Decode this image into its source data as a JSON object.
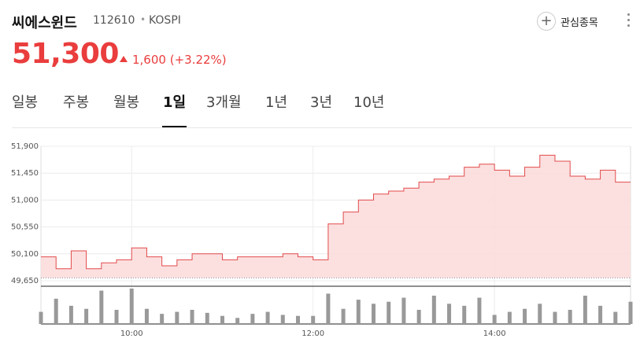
{
  "stock": {
    "name": "씨에스윈드",
    "code": "112610",
    "separator": "•",
    "market": "KOSPI",
    "price": "51,300",
    "change": "1,600",
    "change_pct": "(+3.22%)",
    "direction": "up",
    "up_color": "#ea3d3d"
  },
  "actions": {
    "watch_plus": "+",
    "watch_label": "관심종목",
    "more_icon": "more-vertical-icon"
  },
  "tabs": [
    {
      "label": "일봉",
      "active": false
    },
    {
      "label": "주봉",
      "active": false
    },
    {
      "label": "월봉",
      "active": false
    },
    {
      "label": "1일",
      "active": true
    },
    {
      "label": "3개월",
      "active": false
    },
    {
      "label": "1년",
      "active": false
    },
    {
      "label": "3년",
      "active": false
    },
    {
      "label": "10년",
      "active": false
    }
  ],
  "chart_data": {
    "type": "area",
    "x_ticks": [
      "10:00",
      "12:00",
      "14:00"
    ],
    "y_ticks": [
      "51,900",
      "51,450",
      "51,000",
      "50,550",
      "50,100",
      "49,650"
    ],
    "ylim": [
      49650,
      51900
    ],
    "prev_close": 49700,
    "grid": true,
    "line_color": "#e24a4a",
    "fill_color": "#fbdada",
    "volume_color": "#999999",
    "x_times": [
      "09:00",
      "09:10",
      "09:20",
      "09:30",
      "09:40",
      "09:50",
      "10:00",
      "10:10",
      "10:20",
      "10:30",
      "10:40",
      "10:50",
      "11:00",
      "11:10",
      "11:20",
      "11:30",
      "11:40",
      "11:50",
      "12:00",
      "12:10",
      "12:20",
      "12:30",
      "12:40",
      "12:50",
      "13:00",
      "13:10",
      "13:20",
      "13:30",
      "13:40",
      "13:50",
      "14:00",
      "14:10",
      "14:20",
      "14:30",
      "14:40",
      "14:50",
      "15:00",
      "15:10",
      "15:20",
      "15:30"
    ],
    "prices": [
      50050,
      49850,
      50150,
      49850,
      49950,
      50000,
      50200,
      50050,
      49900,
      50000,
      50100,
      50100,
      50000,
      50050,
      50050,
      50050,
      50100,
      50050,
      50000,
      50600,
      50800,
      51000,
      51100,
      51150,
      51200,
      51300,
      51350,
      51400,
      51550,
      51600,
      51500,
      51400,
      51550,
      51750,
      51650,
      51400,
      51350,
      51500,
      51300,
      51300
    ],
    "volume": [
      12,
      25,
      18,
      15,
      33,
      14,
      35,
      15,
      10,
      12,
      14,
      11,
      8,
      6,
      10,
      12,
      9,
      8,
      8,
      30,
      15,
      24,
      20,
      22,
      26,
      14,
      28,
      20,
      18,
      26,
      9,
      12,
      15,
      20,
      12,
      14,
      28,
      18,
      12,
      22
    ]
  }
}
